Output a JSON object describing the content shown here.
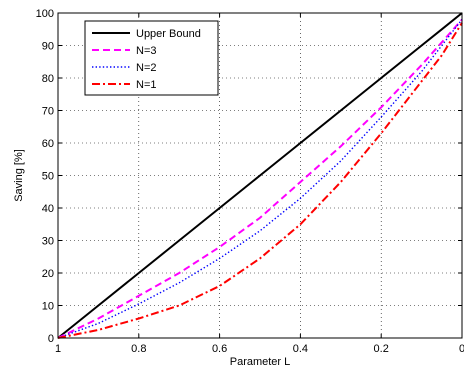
{
  "chart_data": {
    "type": "line",
    "title": "",
    "xlabel": "Parameter L",
    "ylabel": "Saving [%]",
    "xlim": [
      1,
      0
    ],
    "ylim": [
      0,
      100
    ],
    "x_reversed": true,
    "grid": true,
    "grid_style": "dotted",
    "legend_position": "top-left",
    "x_ticks": [
      1,
      0.8,
      0.6,
      0.4,
      0.2,
      0
    ],
    "x_tick_labels": [
      "1",
      "0.8",
      "0.6",
      "0.4",
      "0.2",
      "0"
    ],
    "y_ticks": [
      0,
      10,
      20,
      30,
      40,
      50,
      60,
      70,
      80,
      90,
      100
    ],
    "y_tick_labels": [
      "0",
      "10",
      "20",
      "30",
      "40",
      "50",
      "60",
      "70",
      "80",
      "90",
      "100"
    ],
    "x": [
      1.0,
      0.9,
      0.8,
      0.7,
      0.6,
      0.5,
      0.4,
      0.3,
      0.2,
      0.1,
      0.05,
      0.0
    ],
    "series": [
      {
        "name": "Upper Bound",
        "color": "#000000",
        "dash": "solid",
        "width": 2,
        "values": [
          0,
          10,
          20,
          30,
          40,
          50,
          60,
          70,
          80,
          90,
          95,
          100
        ]
      },
      {
        "name": "N=3",
        "color": "#ff00ff",
        "dash": "dashed",
        "width": 2,
        "values": [
          0,
          6,
          13,
          20,
          28,
          37,
          48,
          59,
          71,
          84,
          91,
          98
        ]
      },
      {
        "name": "N=2",
        "color": "#0000ff",
        "dash": "dotted",
        "width": 1.4,
        "values": [
          0,
          4.5,
          10.5,
          17,
          24.5,
          33,
          43,
          54.5,
          68,
          82,
          90,
          98
        ]
      },
      {
        "name": "N=1",
        "color": "#ff0000",
        "dash": "dashdot",
        "width": 2,
        "values": [
          0,
          2.5,
          6,
          10,
          16,
          24.5,
          35,
          48,
          63,
          79,
          87,
          97
        ]
      }
    ]
  }
}
